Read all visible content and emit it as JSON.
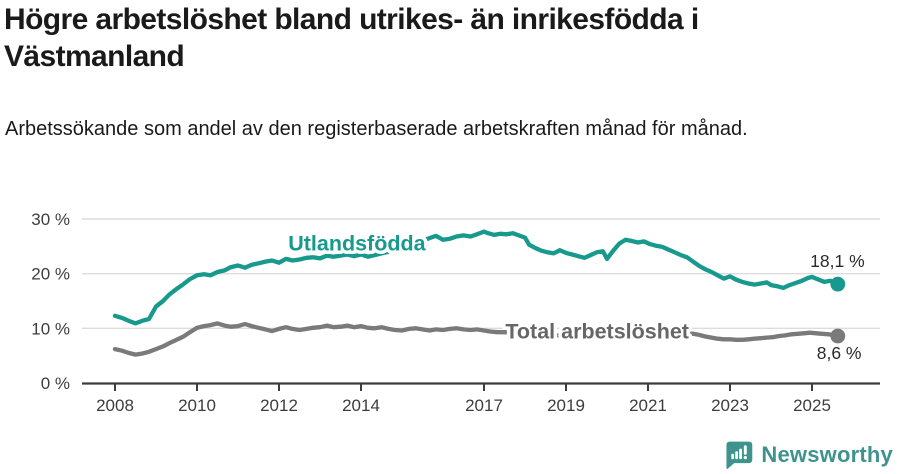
{
  "footer": {
    "brand": "Newsworthy",
    "brand_color": "#3e948c",
    "logo_icon": "speech-bubble-bar-chart-icon"
  },
  "chart_data": {
    "type": "line",
    "title": "Högre arbetslöshet bland utrikes- än inrikesfödda i Västmanland",
    "subtitle": "Arbetssökande som andel av den registerbaserade arbetskraften månad för månad.",
    "unit": "%",
    "grid": true,
    "legend_position": "inline-labels",
    "xlim": [
      2007.2,
      2026.7
    ],
    "ylim": [
      0,
      31.5
    ],
    "x_ticks": [
      {
        "v": 2008,
        "label": "2008"
      },
      {
        "v": 2010,
        "label": "2010"
      },
      {
        "v": 2012,
        "label": "2012"
      },
      {
        "v": 2014,
        "label": "2014"
      },
      {
        "v": 2017,
        "label": "2017"
      },
      {
        "v": 2019,
        "label": "2019"
      },
      {
        "v": 2021,
        "label": "2021"
      },
      {
        "v": 2023,
        "label": "2023"
      },
      {
        "v": 2025,
        "label": "2025"
      }
    ],
    "y_ticks": [
      {
        "v": 0,
        "label": "0 %"
      },
      {
        "v": 10,
        "label": "10 %"
      },
      {
        "v": 20,
        "label": "20 %"
      },
      {
        "v": 30,
        "label": "30 %"
      }
    ],
    "axis_color": "#3d3d3d",
    "grid_color": "#dcdcdc",
    "annotation_color": "#2b2b2b",
    "series": [
      {
        "name": "Utlandsfödda",
        "color": "#17998d",
        "label_color": "#17998d",
        "label_pos": {
          "x": 2013.9,
          "y": 25.6
        },
        "end_label": {
          "text": "18,1 %",
          "x": 2025.62,
          "y": 22.3
        },
        "last_value": "18,1 %",
        "points": [
          [
            2008.0,
            12.3
          ],
          [
            2008.17,
            11.9
          ],
          [
            2008.33,
            11.4
          ],
          [
            2008.5,
            10.9
          ],
          [
            2008.67,
            11.4
          ],
          [
            2008.83,
            11.7
          ],
          [
            2009.0,
            14.0
          ],
          [
            2009.17,
            15.0
          ],
          [
            2009.33,
            16.2
          ],
          [
            2009.5,
            17.2
          ],
          [
            2009.67,
            18.1
          ],
          [
            2009.83,
            19.0
          ],
          [
            2010.0,
            19.7
          ],
          [
            2010.17,
            19.9
          ],
          [
            2010.33,
            19.7
          ],
          [
            2010.5,
            20.3
          ],
          [
            2010.67,
            20.6
          ],
          [
            2010.83,
            21.2
          ],
          [
            2011.0,
            21.5
          ],
          [
            2011.17,
            21.1
          ],
          [
            2011.33,
            21.6
          ],
          [
            2011.5,
            21.9
          ],
          [
            2011.67,
            22.2
          ],
          [
            2011.83,
            22.4
          ],
          [
            2012.0,
            22.0
          ],
          [
            2012.17,
            22.7
          ],
          [
            2012.33,
            22.4
          ],
          [
            2012.5,
            22.6
          ],
          [
            2012.67,
            22.9
          ],
          [
            2012.83,
            23.0
          ],
          [
            2013.0,
            22.8
          ],
          [
            2013.17,
            23.3
          ],
          [
            2013.33,
            23.1
          ],
          [
            2013.5,
            23.3
          ],
          [
            2013.67,
            23.5
          ],
          [
            2013.83,
            23.2
          ],
          [
            2014.0,
            23.5
          ],
          [
            2014.17,
            23.1
          ],
          [
            2014.33,
            23.4
          ],
          [
            2014.5,
            23.7
          ],
          [
            2014.67,
            24.0
          ],
          [
            2014.83,
            24.5
          ],
          [
            2015.0,
            24.9
          ],
          [
            2015.17,
            25.3
          ],
          [
            2015.33,
            25.6
          ],
          [
            2015.5,
            26.0
          ],
          [
            2015.67,
            26.5
          ],
          [
            2015.83,
            26.9
          ],
          [
            2016.0,
            26.2
          ],
          [
            2016.17,
            26.4
          ],
          [
            2016.33,
            26.8
          ],
          [
            2016.5,
            27.0
          ],
          [
            2016.67,
            26.8
          ],
          [
            2016.83,
            27.2
          ],
          [
            2017.0,
            27.7
          ],
          [
            2017.1,
            27.4
          ],
          [
            2017.25,
            27.1
          ],
          [
            2017.4,
            27.3
          ],
          [
            2017.55,
            27.2
          ],
          [
            2017.7,
            27.4
          ],
          [
            2017.85,
            27.0
          ],
          [
            2018.0,
            26.6
          ],
          [
            2018.1,
            25.3
          ],
          [
            2018.25,
            24.7
          ],
          [
            2018.4,
            24.2
          ],
          [
            2018.55,
            23.9
          ],
          [
            2018.7,
            23.7
          ],
          [
            2018.85,
            24.3
          ],
          [
            2019.0,
            23.8
          ],
          [
            2019.15,
            23.5
          ],
          [
            2019.3,
            23.2
          ],
          [
            2019.45,
            22.9
          ],
          [
            2019.6,
            23.4
          ],
          [
            2019.75,
            23.9
          ],
          [
            2019.9,
            24.1
          ],
          [
            2020.0,
            22.7
          ],
          [
            2020.15,
            24.2
          ],
          [
            2020.3,
            25.5
          ],
          [
            2020.45,
            26.2
          ],
          [
            2020.6,
            26.0
          ],
          [
            2020.75,
            25.7
          ],
          [
            2020.9,
            25.9
          ],
          [
            2021.05,
            25.4
          ],
          [
            2021.2,
            25.1
          ],
          [
            2021.35,
            24.9
          ],
          [
            2021.5,
            24.4
          ],
          [
            2021.65,
            23.9
          ],
          [
            2021.8,
            23.4
          ],
          [
            2021.95,
            23.0
          ],
          [
            2022.1,
            22.2
          ],
          [
            2022.25,
            21.4
          ],
          [
            2022.4,
            20.8
          ],
          [
            2022.55,
            20.3
          ],
          [
            2022.7,
            19.7
          ],
          [
            2022.85,
            19.1
          ],
          [
            2023.0,
            19.5
          ],
          [
            2023.15,
            18.9
          ],
          [
            2023.3,
            18.5
          ],
          [
            2023.45,
            18.2
          ],
          [
            2023.6,
            18.0
          ],
          [
            2023.75,
            18.2
          ],
          [
            2023.9,
            18.4
          ],
          [
            2024.0,
            17.9
          ],
          [
            2024.15,
            17.7
          ],
          [
            2024.3,
            17.4
          ],
          [
            2024.45,
            17.9
          ],
          [
            2024.6,
            18.3
          ],
          [
            2024.75,
            18.7
          ],
          [
            2024.9,
            19.2
          ],
          [
            2025.0,
            19.4
          ],
          [
            2025.1,
            19.1
          ],
          [
            2025.2,
            18.8
          ],
          [
            2025.3,
            18.5
          ],
          [
            2025.45,
            18.7
          ],
          [
            2025.55,
            18.3
          ],
          [
            2025.63,
            18.1
          ]
        ]
      },
      {
        "name": "Total arbetslöshet",
        "color": "#7a7a7a",
        "label_color": "#666666",
        "label_pos": {
          "x": 2019.76,
          "y": 9.5
        },
        "end_label": {
          "text": "8,6 %",
          "x": 2025.66,
          "y": 5.5
        },
        "last_value": "8,6 %",
        "points": [
          [
            2008.0,
            6.2
          ],
          [
            2008.17,
            5.9
          ],
          [
            2008.33,
            5.5
          ],
          [
            2008.5,
            5.2
          ],
          [
            2008.67,
            5.4
          ],
          [
            2008.83,
            5.7
          ],
          [
            2009.0,
            6.2
          ],
          [
            2009.17,
            6.7
          ],
          [
            2009.33,
            7.3
          ],
          [
            2009.5,
            7.9
          ],
          [
            2009.67,
            8.5
          ],
          [
            2009.83,
            9.3
          ],
          [
            2010.0,
            10.1
          ],
          [
            2010.17,
            10.4
          ],
          [
            2010.33,
            10.6
          ],
          [
            2010.5,
            10.9
          ],
          [
            2010.67,
            10.5
          ],
          [
            2010.83,
            10.3
          ],
          [
            2011.0,
            10.4
          ],
          [
            2011.17,
            10.8
          ],
          [
            2011.33,
            10.4
          ],
          [
            2011.5,
            10.1
          ],
          [
            2011.67,
            9.8
          ],
          [
            2011.83,
            9.5
          ],
          [
            2012.0,
            9.9
          ],
          [
            2012.17,
            10.2
          ],
          [
            2012.33,
            9.9
          ],
          [
            2012.5,
            9.7
          ],
          [
            2012.67,
            9.9
          ],
          [
            2012.83,
            10.1
          ],
          [
            2013.0,
            10.2
          ],
          [
            2013.17,
            10.5
          ],
          [
            2013.33,
            10.2
          ],
          [
            2013.5,
            10.3
          ],
          [
            2013.67,
            10.5
          ],
          [
            2013.83,
            10.2
          ],
          [
            2014.0,
            10.4
          ],
          [
            2014.17,
            10.1
          ],
          [
            2014.33,
            10.0
          ],
          [
            2014.5,
            10.2
          ],
          [
            2014.67,
            9.9
          ],
          [
            2014.83,
            9.7
          ],
          [
            2015.0,
            9.6
          ],
          [
            2015.17,
            9.9
          ],
          [
            2015.33,
            10.0
          ],
          [
            2015.5,
            9.8
          ],
          [
            2015.67,
            9.6
          ],
          [
            2015.83,
            9.8
          ],
          [
            2016.0,
            9.7
          ],
          [
            2016.17,
            9.9
          ],
          [
            2016.33,
            10.0
          ],
          [
            2016.5,
            9.8
          ],
          [
            2016.67,
            9.7
          ],
          [
            2016.83,
            9.8
          ],
          [
            2017.0,
            9.6
          ],
          [
            2017.17,
            9.4
          ],
          [
            2017.33,
            9.3
          ],
          [
            2017.5,
            9.3
          ],
          [
            2017.67,
            9.2
          ],
          [
            2017.83,
            9.1
          ],
          [
            2018.0,
            9.0
          ],
          [
            2018.25,
            8.9
          ],
          [
            2018.5,
            8.8
          ],
          [
            2018.75,
            8.7
          ],
          [
            2019.0,
            8.7
          ],
          [
            2019.25,
            8.6
          ],
          [
            2019.5,
            8.5
          ],
          [
            2019.75,
            8.6
          ],
          [
            2020.0,
            8.8
          ],
          [
            2020.15,
            9.5
          ],
          [
            2020.3,
            10.1
          ],
          [
            2020.45,
            10.5
          ],
          [
            2020.6,
            10.4
          ],
          [
            2020.75,
            10.2
          ],
          [
            2020.9,
            10.1
          ],
          [
            2021.05,
            10.0
          ],
          [
            2021.2,
            9.9
          ],
          [
            2021.35,
            9.7
          ],
          [
            2021.5,
            9.4
          ],
          [
            2021.65,
            9.3
          ],
          [
            2021.8,
            9.2
          ],
          [
            2021.95,
            9.1
          ],
          [
            2022.1,
            9.0
          ],
          [
            2022.25,
            8.8
          ],
          [
            2022.4,
            8.5
          ],
          [
            2022.55,
            8.3
          ],
          [
            2022.7,
            8.1
          ],
          [
            2022.85,
            8.0
          ],
          [
            2023.0,
            8.0
          ],
          [
            2023.15,
            7.9
          ],
          [
            2023.3,
            7.9
          ],
          [
            2023.45,
            8.0
          ],
          [
            2023.6,
            8.1
          ],
          [
            2023.75,
            8.2
          ],
          [
            2023.9,
            8.3
          ],
          [
            2024.05,
            8.4
          ],
          [
            2024.2,
            8.6
          ],
          [
            2024.35,
            8.7
          ],
          [
            2024.5,
            8.9
          ],
          [
            2024.65,
            9.0
          ],
          [
            2024.8,
            9.1
          ],
          [
            2024.95,
            9.2
          ],
          [
            2025.1,
            9.1
          ],
          [
            2025.25,
            9.0
          ],
          [
            2025.4,
            8.9
          ],
          [
            2025.5,
            8.8
          ],
          [
            2025.63,
            8.6
          ]
        ]
      }
    ]
  }
}
